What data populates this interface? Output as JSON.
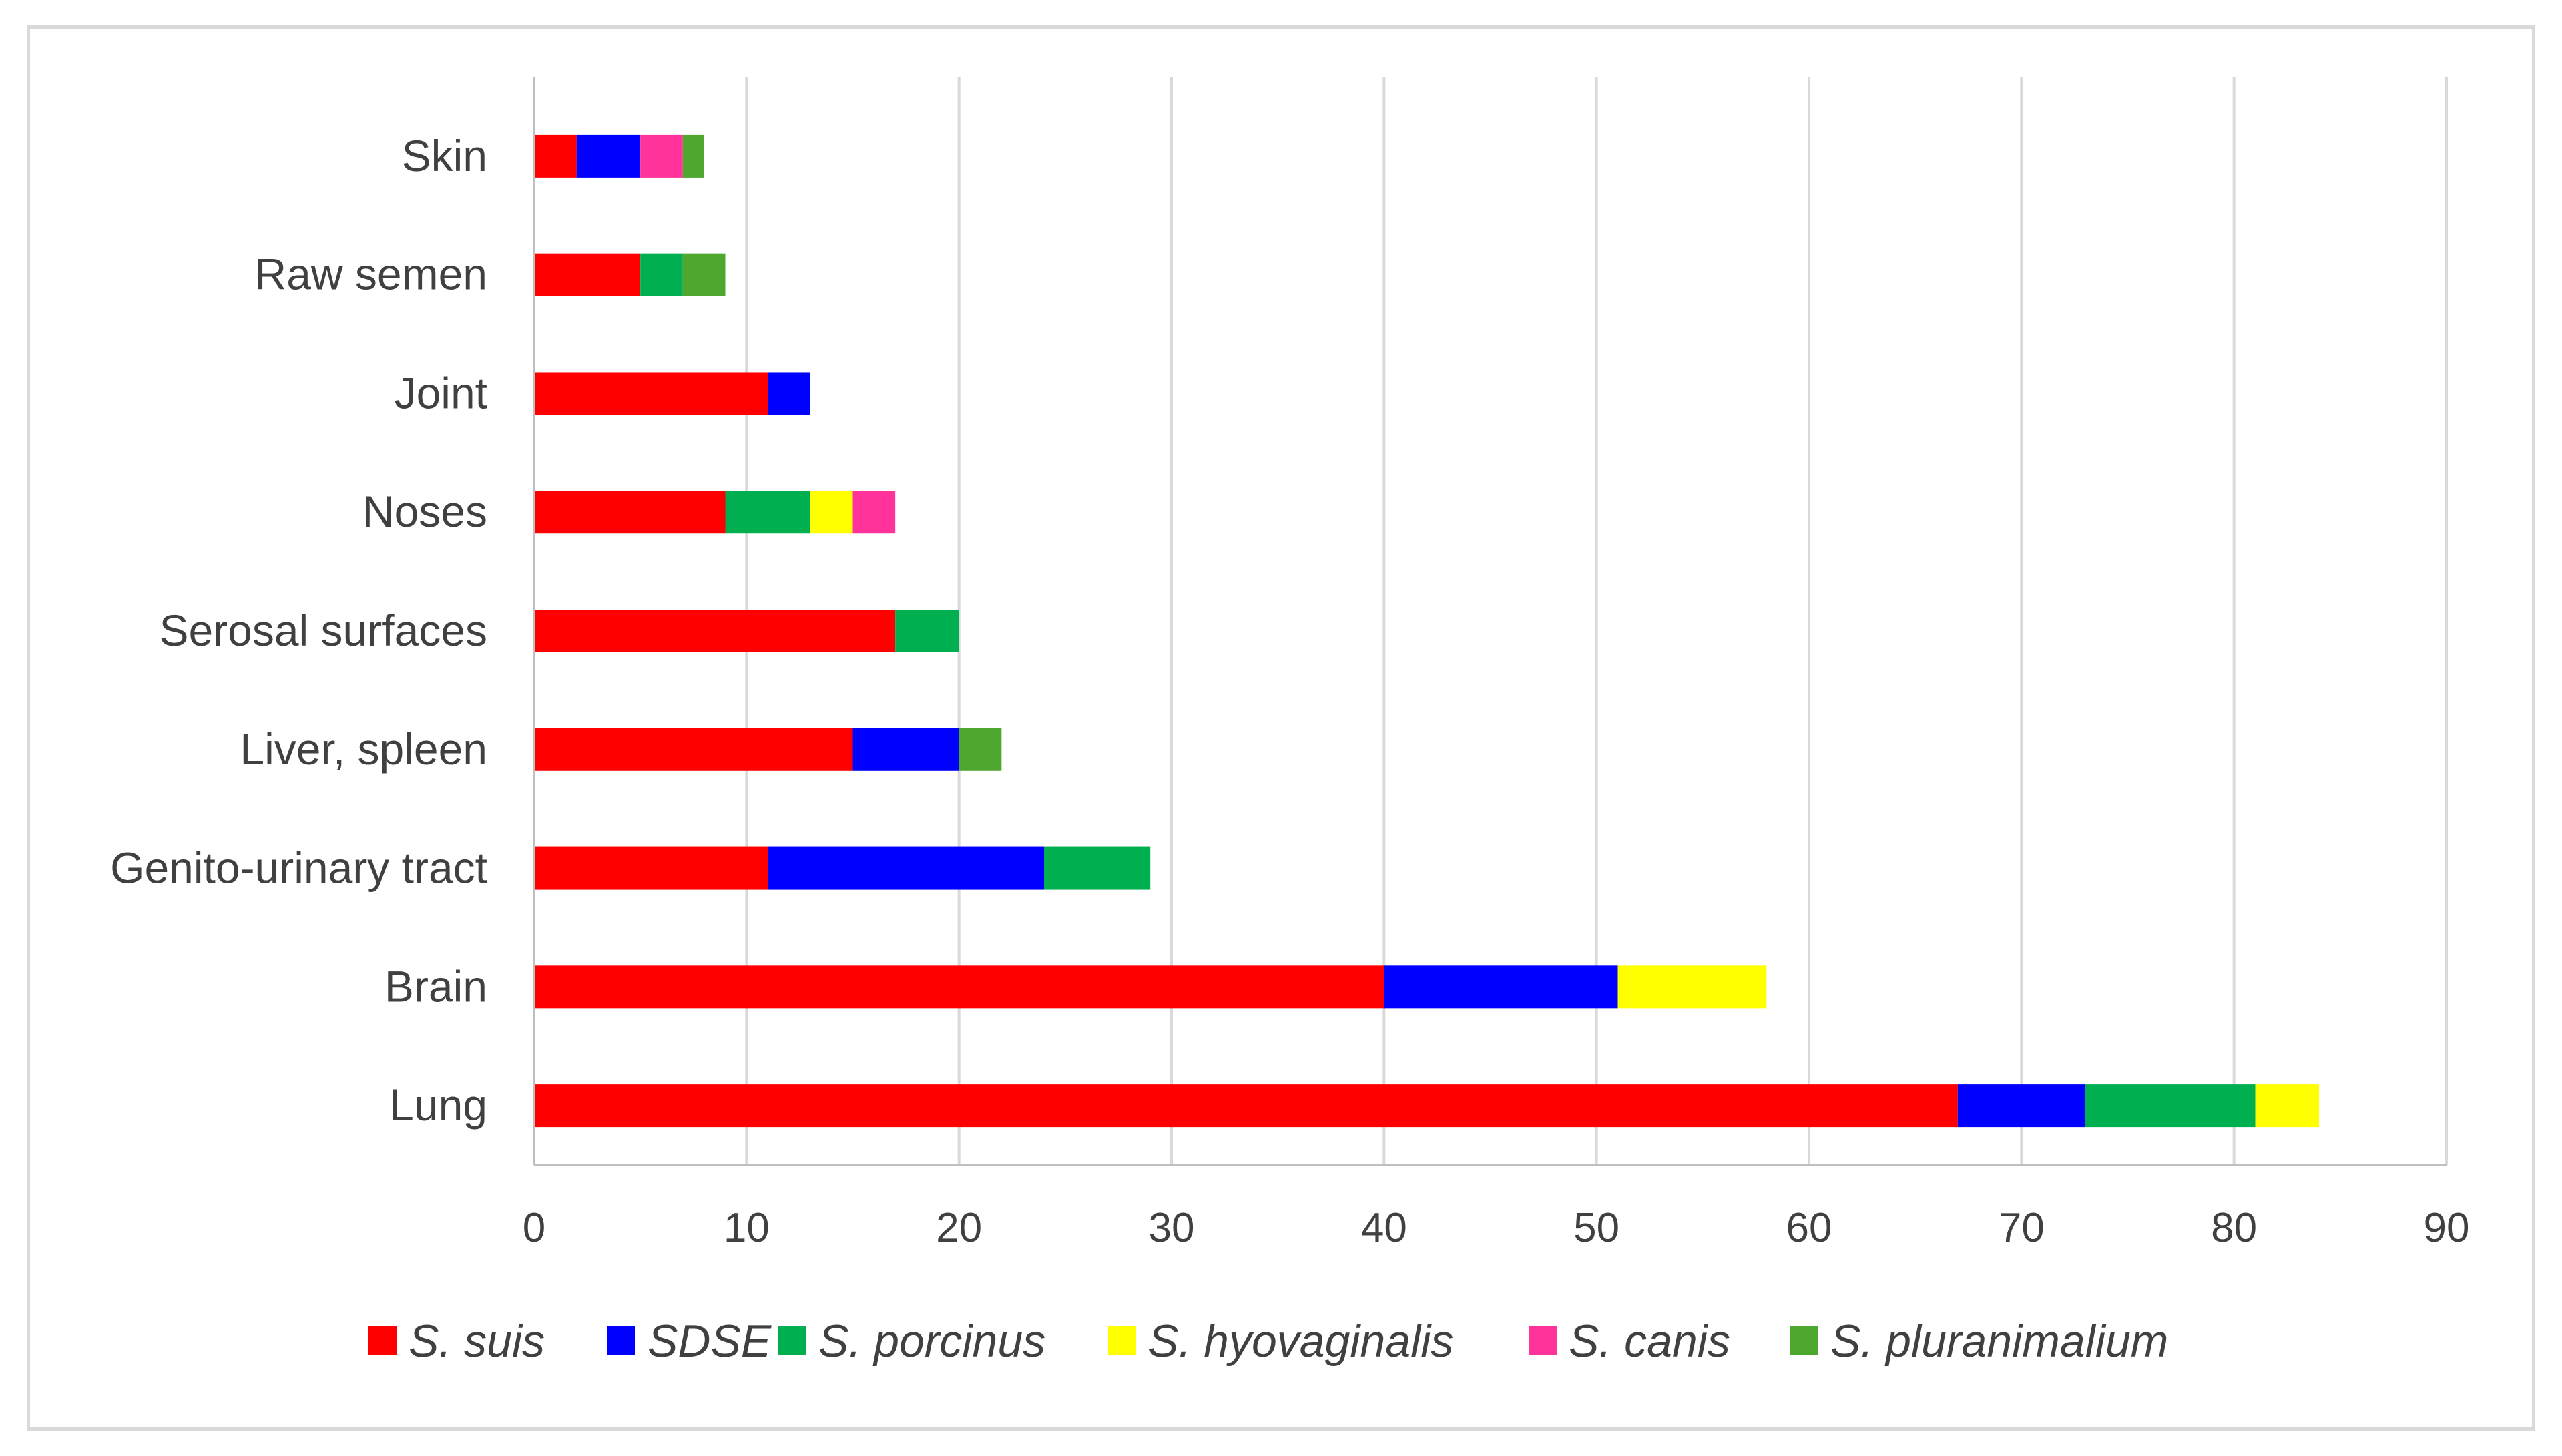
{
  "chart_data": {
    "type": "bar",
    "orientation": "horizontal",
    "stacked": true,
    "title": "",
    "xlabel": "",
    "ylabel": "",
    "xlim": [
      0,
      90
    ],
    "xticks": [
      0,
      10,
      20,
      30,
      40,
      50,
      60,
      70,
      80,
      90
    ],
    "grid": "vertical",
    "legend_position": "bottom",
    "categories": [
      "Skin",
      "Raw semen",
      "Joint",
      "Noses",
      "Serosal surfaces",
      "Liver, spleen",
      "Genito-urinary tract",
      "Brain",
      "Lung"
    ],
    "series": [
      {
        "name": "S. suis",
        "italic": true,
        "color": "#ff0000",
        "values": [
          2,
          5,
          11,
          9,
          17,
          15,
          11,
          40,
          67
        ]
      },
      {
        "name": "SDSE",
        "italic": true,
        "color": "#0000ff",
        "values": [
          3,
          0,
          2,
          0,
          0,
          5,
          13,
          11,
          6
        ]
      },
      {
        "name": "S. porcinus",
        "italic": true,
        "color": "#00b050",
        "values": [
          0,
          2,
          0,
          4,
          3,
          0,
          5,
          0,
          8
        ]
      },
      {
        "name": "S. hyovaginalis",
        "italic": true,
        "color": "#ffff00",
        "values": [
          0,
          0,
          0,
          2,
          0,
          0,
          0,
          7,
          3
        ]
      },
      {
        "name": "S. canis",
        "italic": true,
        "color": "#ff3399",
        "values": [
          2,
          0,
          0,
          2,
          0,
          0,
          0,
          0,
          0
        ]
      },
      {
        "name": "S. pluranimalium",
        "italic": true,
        "color": "#4ea72e",
        "values": [
          1,
          2,
          0,
          0,
          0,
          2,
          0,
          0,
          0
        ]
      }
    ]
  }
}
